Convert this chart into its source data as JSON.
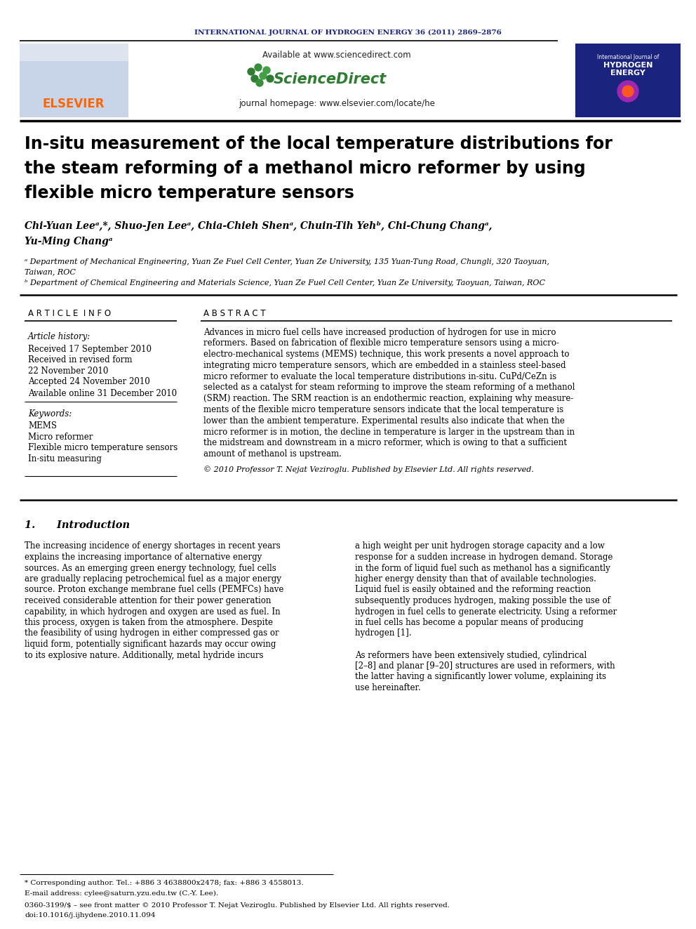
{
  "journal_header": "INTERNATIONAL JOURNAL OF HYDROGEN ENERGY 36 (2011) 2869–2876",
  "journal_header_color": "#1a237e",
  "title_line1": "In-situ measurement of the local temperature distributions for",
  "title_line2": "the steam reforming of a methanol micro reformer by using",
  "title_line3": "flexible micro temperature sensors",
  "authors_line1": "Chi-Yuan Leeᵃ,*, Shuo-Jen Leeᵃ, Chia-Chieh Shenᵃ, Chuin-Tih Yehᵇ, Chi-Chung Changᵃ,",
  "authors_line2": "Yu-Ming Changᵃ",
  "affil_a": "ᵃ Department of Mechanical Engineering, Yuan Ze Fuel Cell Center, Yuan Ze University, 135 Yuan-Tung Road, Chungli, 320 Taoyuan,",
  "affil_a2": "Taiwan, ROC",
  "affil_b": "ᵇ Department of Chemical Engineering and Materials Science, Yuan Ze Fuel Cell Center, Yuan Ze University, Taoyuan, Taiwan, ROC",
  "article_info_header": "A R T I C L E  I N F O",
  "abstract_header": "A B S T R A C T",
  "article_history_label": "Article history:",
  "received1": "Received 17 September 2010",
  "received2": "Received in revised form",
  "received2b": "22 November 2010",
  "accepted": "Accepted 24 November 2010",
  "available": "Available online 31 December 2010",
  "keywords_label": "Keywords:",
  "keywords": [
    "MEMS",
    "Micro reformer",
    "Flexible micro temperature sensors",
    "In-situ measuring"
  ],
  "abstract_lines": [
    "Advances in micro fuel cells have increased production of hydrogen for use in micro",
    "reformers. Based on fabrication of flexible micro temperature sensors using a micro-",
    "electro-mechanical systems (MEMS) technique, this work presents a novel approach to",
    "integrating micro temperature sensors, which are embedded in a stainless steel-based",
    "micro reformer to evaluate the local temperature distributions in-situ. CuPd/CeZn is",
    "selected as a catalyst for steam reforming to improve the steam reforming of a methanol",
    "(SRM) reaction. The SRM reaction is an endothermic reaction, explaining why measure-",
    "ments of the flexible micro temperature sensors indicate that the local temperature is",
    "lower than the ambient temperature. Experimental results also indicate that when the",
    "micro reformer is in motion, the decline in temperature is larger in the upstream than in",
    "the midstream and downstream in a micro reformer, which is owing to that a sufficient",
    "amount of methanol is upstream."
  ],
  "copyright": "© 2010 Professor T. Nejat Veziroglu. Published by Elsevier Ltd. All rights reserved.",
  "intro_header": "1.      Introduction",
  "intro_left_lines": [
    "The increasing incidence of energy shortages in recent years",
    "explains the increasing importance of alternative energy",
    "sources. As an emerging green energy technology, fuel cells",
    "are gradually replacing petrochemical fuel as a major energy",
    "source. Proton exchange membrane fuel cells (PEMFCs) have",
    "received considerable attention for their power generation",
    "capability, in which hydrogen and oxygen are used as fuel. In",
    "this process, oxygen is taken from the atmosphere. Despite",
    "the feasibility of using hydrogen in either compressed gas or",
    "liquid form, potentially significant hazards may occur owing",
    "to its explosive nature. Additionally, metal hydride incurs"
  ],
  "intro_right_lines": [
    "a high weight per unit hydrogen storage capacity and a low",
    "response for a sudden increase in hydrogen demand. Storage",
    "in the form of liquid fuel such as methanol has a significantly",
    "higher energy density than that of available technologies.",
    "Liquid fuel is easily obtained and the reforming reaction",
    "subsequently produces hydrogen, making possible the use of",
    "hydrogen in fuel cells to generate electricity. Using a reformer",
    "in fuel cells has become a popular means of producing",
    "hydrogen [1].",
    "",
    "As reformers have been extensively studied, cylindrical",
    "[2–8] and planar [9–20] structures are used in reformers, with",
    "the latter having a significantly lower volume, explaining its",
    "use hereinafter."
  ],
  "footnote1": "* Corresponding author. Tel.: +886 3 4638800x2478; fax: +886 3 4558013.",
  "footnote2": "E-mail address: cylee@saturn.yzu.edu.tw (C.-Y. Lee).",
  "footnote3": "0360-3199/$ – see front matter © 2010 Professor T. Nejat Veziroglu. Published by Elsevier Ltd. All rights reserved.",
  "footnote4": "doi:10.1016/j.ijhydene.2010.11.094",
  "sciencedirect_text": "Available at www.sciencedirect.com",
  "journal_homepage": "journal homepage: www.elsevier.com/locate/he",
  "bg_color": "#ffffff",
  "text_color": "#000000",
  "elsevier_color": "#ff6600",
  "navy_color": "#1a237e"
}
